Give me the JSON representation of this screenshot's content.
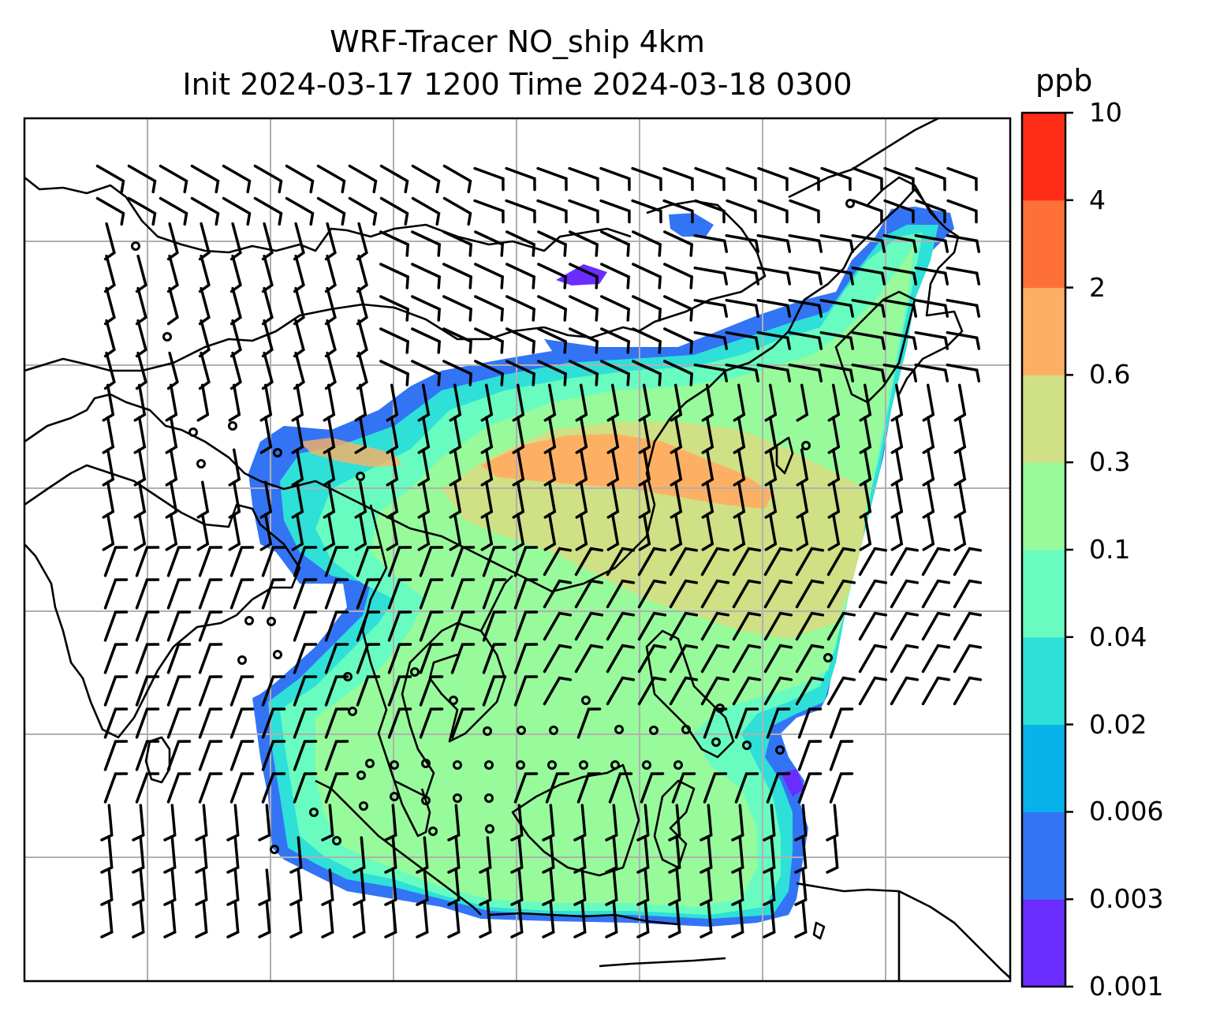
{
  "title": {
    "line1": "WRF-Tracer NO_ship 4km",
    "line2": "Init 2024-03-17 1200 Time 2024-03-18 0300"
  },
  "colorbar": {
    "unit": "ppb",
    "levels": [
      "0.001",
      "0.003",
      "0.006",
      "0.02",
      "0.04",
      "0.1",
      "0.3",
      "0.6",
      "2",
      "4",
      "10"
    ],
    "colors": [
      "#6a2cff",
      "#3374f5",
      "#08b2ea",
      "#2ee0d8",
      "#68fcc0",
      "#97fa9b",
      "#cfe085",
      "#fdb063",
      "#ff7038",
      "#ff2d18"
    ]
  },
  "map": {
    "gridlines": true,
    "grid_color": "#b0b0b0",
    "coastline_color": "#000000",
    "wind_barbs": true
  }
}
